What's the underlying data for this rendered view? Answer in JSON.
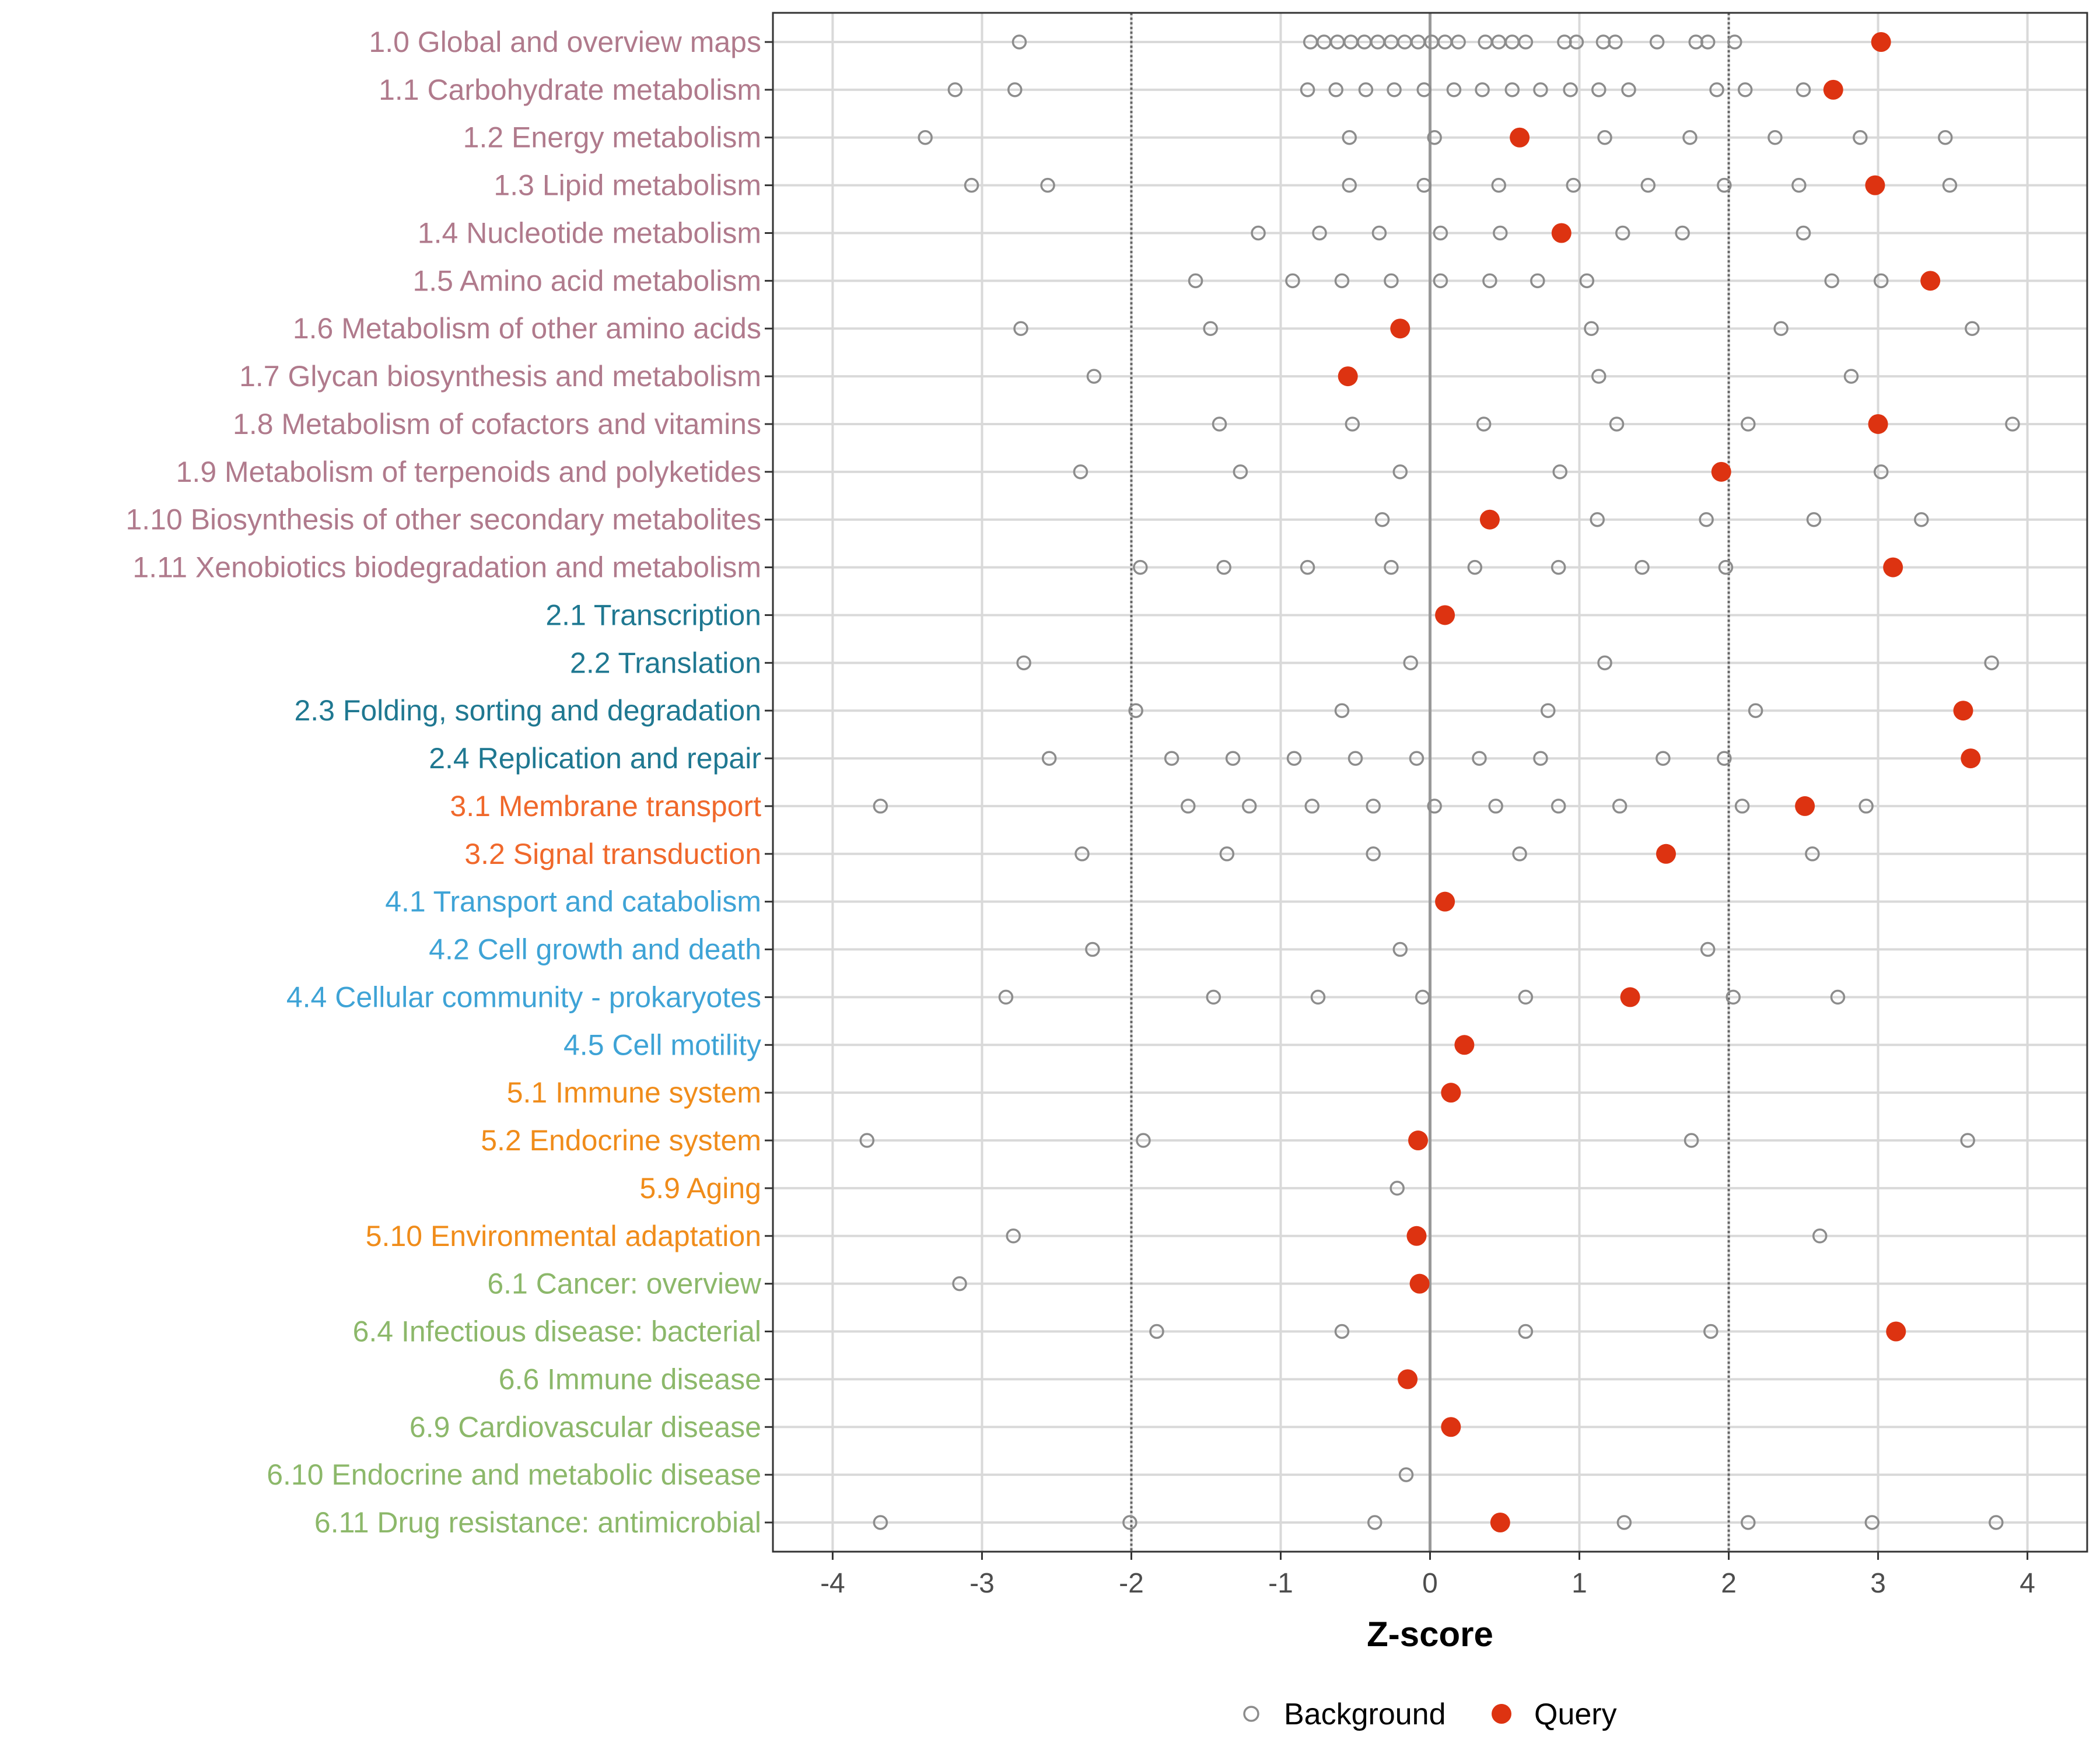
{
  "chart_data": {
    "type": "scatter",
    "xlabel": "Z-score",
    "xlim": [
      -4.4,
      4.4
    ],
    "xticks": [
      -4,
      -3,
      -2,
      -1,
      0,
      1,
      2,
      3,
      4
    ],
    "reference_lines": {
      "threshold": [
        -2,
        2
      ],
      "zero": 0
    },
    "legend": {
      "position": "bottom",
      "entries": [
        {
          "name": "Background",
          "style": "open-circle"
        },
        {
          "name": "Query",
          "style": "filled-circle"
        }
      ]
    },
    "colors": {
      "background_point": "#8c8c8c",
      "query_point": "#dd3311",
      "grid": "#d9d9d9"
    },
    "categories": [
      {
        "label": "1.0 Global and overview maps",
        "color": "#b07a8c",
        "query": 3.02,
        "background": [
          -2.75,
          -0.8,
          -0.71,
          -0.62,
          -0.53,
          -0.44,
          -0.35,
          -0.26,
          -0.17,
          -0.08,
          0.01,
          0.1,
          0.19,
          0.37,
          0.46,
          0.55,
          0.64,
          0.9,
          0.98,
          1.16,
          1.24,
          1.52,
          1.78,
          1.86,
          2.04
        ]
      },
      {
        "label": "1.1 Carbohydrate metabolism",
        "color": "#b07a8c",
        "query": 2.7,
        "background": [
          -3.18,
          -2.78,
          -0.82,
          -0.63,
          -0.43,
          -0.24,
          -0.04,
          0.16,
          0.35,
          0.55,
          0.74,
          0.94,
          1.13,
          1.33,
          1.92,
          2.11,
          2.5
        ]
      },
      {
        "label": "1.2 Energy metabolism",
        "color": "#b07a8c",
        "query": 0.6,
        "background": [
          -3.38,
          -0.54,
          0.03,
          1.17,
          1.74,
          2.31,
          2.88,
          3.45
        ]
      },
      {
        "label": "1.3 Lipid metabolism",
        "color": "#b07a8c",
        "query": 2.98,
        "background": [
          -3.07,
          -2.56,
          -0.54,
          -0.04,
          0.46,
          0.96,
          1.46,
          1.97,
          2.47,
          3.48
        ]
      },
      {
        "label": "1.4 Nucleotide metabolism",
        "color": "#b07a8c",
        "query": 0.88,
        "background": [
          -1.15,
          -0.74,
          -0.34,
          0.07,
          0.47,
          1.29,
          1.69,
          2.5
        ]
      },
      {
        "label": "1.5 Amino acid metabolism",
        "color": "#b07a8c",
        "query": 3.35,
        "background": [
          -1.57,
          -0.92,
          -0.59,
          -0.26,
          0.07,
          0.4,
          0.72,
          1.05,
          2.69,
          3.02
        ]
      },
      {
        "label": "1.6 Metabolism of other amino acids",
        "color": "#b07a8c",
        "query": -0.2,
        "background": [
          -2.74,
          -1.47,
          1.08,
          2.35,
          3.63
        ]
      },
      {
        "label": "1.7 Glycan biosynthesis and metabolism",
        "color": "#b07a8c",
        "query": -0.55,
        "background": [
          -2.25,
          1.13,
          2.82
        ]
      },
      {
        "label": "1.8 Metabolism of cofactors and vitamins",
        "color": "#b07a8c",
        "query": 3.0,
        "background": [
          -1.41,
          -0.52,
          0.36,
          1.25,
          2.13,
          3.9
        ]
      },
      {
        "label": "1.9 Metabolism of terpenoids and polyketides",
        "color": "#b07a8c",
        "query": 1.95,
        "background": [
          -2.34,
          -1.27,
          -0.2,
          0.87,
          3.02
        ]
      },
      {
        "label": "1.10 Biosynthesis of other secondary metabolites",
        "color": "#b07a8c",
        "query": 0.4,
        "background": [
          -0.32,
          1.12,
          1.85,
          2.57,
          3.29
        ]
      },
      {
        "label": "1.11 Xenobiotics biodegradation and metabolism",
        "color": "#b07a8c",
        "query": 3.1,
        "background": [
          -1.94,
          -1.38,
          -0.82,
          -0.26,
          0.3,
          0.86,
          1.42,
          1.98
        ]
      },
      {
        "label": "2.1 Transcription",
        "color": "#1f7891",
        "query": 0.1,
        "background": []
      },
      {
        "label": "2.2 Translation",
        "color": "#1f7891",
        "query": null,
        "background": [
          -2.72,
          -0.13,
          1.17,
          3.76
        ]
      },
      {
        "label": "2.3 Folding, sorting and degradation",
        "color": "#1f7891",
        "query": 3.57,
        "background": [
          -1.97,
          -0.59,
          0.79,
          2.18
        ]
      },
      {
        "label": "2.4 Replication and repair",
        "color": "#1f7891",
        "query": 3.62,
        "background": [
          -2.55,
          -1.73,
          -1.32,
          -0.91,
          -0.5,
          -0.09,
          0.33,
          0.74,
          1.56,
          1.97
        ]
      },
      {
        "label": "3.1 Membrane transport",
        "color": "#f0682b",
        "query": 2.51,
        "background": [
          -3.68,
          -1.62,
          -1.21,
          -0.79,
          -0.38,
          0.03,
          0.44,
          0.86,
          1.27,
          2.09,
          2.92
        ]
      },
      {
        "label": "3.2 Signal transduction",
        "color": "#f0682b",
        "query": 1.58,
        "background": [
          -2.33,
          -1.36,
          -0.38,
          0.6,
          2.56
        ]
      },
      {
        "label": "4.1 Transport and catabolism",
        "color": "#3ea3d6",
        "query": 0.1,
        "background": []
      },
      {
        "label": "4.2 Cell growth and death",
        "color": "#3ea3d6",
        "query": null,
        "background": [
          -2.26,
          -0.2,
          1.86
        ]
      },
      {
        "label": "4.4 Cellular community - prokaryotes",
        "color": "#3ea3d6",
        "query": 1.34,
        "background": [
          -2.84,
          -1.45,
          -0.75,
          -0.05,
          0.64,
          2.03,
          2.73
        ]
      },
      {
        "label": "4.5 Cell motility",
        "color": "#3ea3d6",
        "query": 0.23,
        "background": []
      },
      {
        "label": "5.1 Immune system",
        "color": "#f08c1a",
        "query": 0.14,
        "background": []
      },
      {
        "label": "5.2 Endocrine system",
        "color": "#f08c1a",
        "query": -0.08,
        "background": [
          -3.77,
          -1.92,
          1.75,
          3.6
        ]
      },
      {
        "label": "5.9 Aging",
        "color": "#f08c1a",
        "query": null,
        "background": [
          -0.22
        ]
      },
      {
        "label": "5.10 Environmental adaptation",
        "color": "#f08c1a",
        "query": -0.09,
        "background": [
          -2.79,
          2.61
        ]
      },
      {
        "label": "6.1 Cancer: overview",
        "color": "#8cb86a",
        "query": -0.07,
        "background": [
          -3.15
        ]
      },
      {
        "label": "6.4 Infectious disease: bacterial",
        "color": "#8cb86a",
        "query": 3.12,
        "background": [
          -1.83,
          -0.59,
          0.64,
          1.88
        ]
      },
      {
        "label": "6.6 Immune disease",
        "color": "#8cb86a",
        "query": -0.15,
        "background": []
      },
      {
        "label": "6.9 Cardiovascular disease",
        "color": "#8cb86a",
        "query": 0.14,
        "background": []
      },
      {
        "label": "6.10 Endocrine and metabolic disease",
        "color": "#8cb86a",
        "query": null,
        "background": [
          -0.16
        ]
      },
      {
        "label": "6.11 Drug resistance: antimicrobial",
        "color": "#8cb86a",
        "query": 0.47,
        "background": [
          -3.68,
          -2.01,
          -0.37,
          1.3,
          2.13,
          2.96,
          3.79
        ]
      }
    ]
  }
}
